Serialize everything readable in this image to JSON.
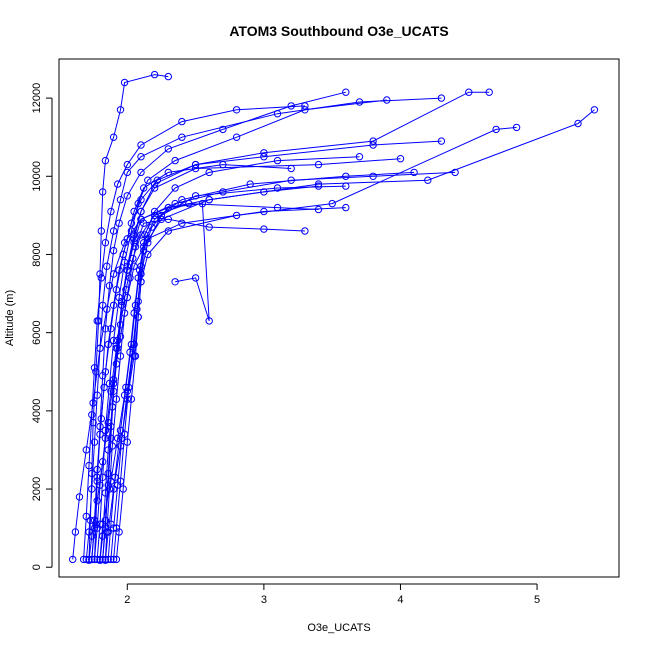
{
  "chart_data": {
    "type": "line",
    "title": "ATOM3 Southbound O3e_UCATS",
    "xlabel": "O3e_UCATS",
    "ylabel": "Altitude (m)",
    "xlim": [
      1.5,
      5.6
    ],
    "ylim": [
      -250,
      13000
    ],
    "xticks": [
      2,
      3,
      4,
      5
    ],
    "yticks": [
      0,
      2000,
      4000,
      6000,
      8000,
      10000,
      12000
    ],
    "grid": false,
    "color": "#0000ff",
    "markers": "open-circle",
    "series": [
      {
        "values": [
          [
            1.6,
            200
          ],
          [
            1.62,
            900
          ],
          [
            1.65,
            1800
          ],
          [
            1.7,
            3000
          ],
          [
            1.75,
            4200
          ],
          [
            1.8,
            5600
          ],
          [
            1.85,
            6600
          ],
          [
            1.9,
            7500
          ],
          [
            1.98,
            8300
          ],
          [
            2.1,
            8900
          ],
          [
            2.35,
            9300
          ],
          [
            2.7,
            9600
          ],
          [
            3.2,
            9900
          ],
          [
            3.8,
            10000
          ],
          [
            4.4,
            10100
          ]
        ]
      },
      {
        "values": [
          [
            1.72,
            180
          ],
          [
            1.74,
            800
          ],
          [
            1.78,
            1700
          ],
          [
            1.82,
            2700
          ],
          [
            1.86,
            3700
          ],
          [
            1.9,
            4800
          ],
          [
            1.95,
            5900
          ],
          [
            2.0,
            6900
          ],
          [
            2.05,
            7700
          ],
          [
            2.15,
            8400
          ],
          [
            2.4,
            8800
          ],
          [
            3.0,
            9100
          ],
          [
            3.6,
            9200
          ]
        ]
      },
      {
        "values": [
          [
            1.8,
            200
          ],
          [
            1.82,
            1100
          ],
          [
            1.88,
            2200
          ],
          [
            1.93,
            3300
          ],
          [
            1.98,
            4400
          ],
          [
            2.02,
            5500
          ],
          [
            2.05,
            6500
          ],
          [
            2.08,
            7400
          ],
          [
            2.12,
            8200
          ],
          [
            2.25,
            8900
          ],
          [
            2.6,
            9400
          ],
          [
            3.4,
            9800
          ],
          [
            4.2,
            9900
          ],
          [
            5.3,
            11350
          ],
          [
            5.42,
            11700
          ]
        ]
      },
      {
        "values": [
          [
            1.84,
            180
          ],
          [
            1.86,
            900
          ],
          [
            1.9,
            2000
          ],
          [
            1.95,
            3100
          ],
          [
            2.0,
            4300
          ],
          [
            2.05,
            5400
          ],
          [
            2.08,
            6400
          ],
          [
            2.1,
            7300
          ],
          [
            2.15,
            8000
          ],
          [
            2.3,
            8600
          ],
          [
            2.8,
            9000
          ],
          [
            3.5,
            9300
          ],
          [
            4.7,
            11200
          ],
          [
            4.85,
            11250
          ]
        ]
      },
      {
        "values": [
          [
            1.76,
            200
          ],
          [
            1.78,
            1000
          ],
          [
            1.8,
            2100
          ],
          [
            1.84,
            3300
          ],
          [
            1.88,
            4500
          ],
          [
            1.92,
            5600
          ],
          [
            1.96,
            6700
          ],
          [
            2.0,
            7600
          ],
          [
            2.05,
            8400
          ],
          [
            2.1,
            9100
          ],
          [
            2.2,
            9800
          ],
          [
            2.5,
            10300
          ],
          [
            3.0,
            10500
          ],
          [
            3.8,
            10800
          ],
          [
            4.3,
            10900
          ]
        ]
      },
      {
        "values": [
          [
            1.7,
            200
          ],
          [
            1.72,
            900
          ],
          [
            1.74,
            2000
          ],
          [
            1.76,
            3200
          ],
          [
            1.78,
            4400
          ],
          [
            1.8,
            5600
          ],
          [
            1.82,
            6700
          ],
          [
            1.85,
            7700
          ],
          [
            1.9,
            8600
          ],
          [
            1.95,
            9400
          ],
          [
            2.0,
            10100
          ],
          [
            2.1,
            10500
          ],
          [
            2.4,
            11000
          ],
          [
            3.1,
            11600
          ],
          [
            3.7,
            11900
          ],
          [
            4.3,
            12000
          ]
        ]
      },
      {
        "values": [
          [
            1.82,
            200
          ],
          [
            1.84,
            1200
          ],
          [
            1.86,
            2400
          ],
          [
            1.88,
            3600
          ],
          [
            1.9,
            4700
          ],
          [
            1.93,
            5800
          ],
          [
            1.96,
            6800
          ],
          [
            2.0,
            7700
          ],
          [
            2.05,
            8500
          ],
          [
            2.1,
            9100
          ],
          [
            2.2,
            9700
          ],
          [
            2.5,
            10200
          ],
          [
            3.4,
            10300
          ],
          [
            4.0,
            10450
          ]
        ]
      },
      {
        "values": [
          [
            1.78,
            200
          ],
          [
            1.8,
            1100
          ],
          [
            1.82,
            2300
          ],
          [
            1.84,
            3500
          ],
          [
            1.87,
            4700
          ],
          [
            1.9,
            5800
          ],
          [
            1.94,
            6900
          ],
          [
            1.98,
            7800
          ],
          [
            2.03,
            8600
          ],
          [
            2.08,
            9300
          ],
          [
            2.15,
            9900
          ],
          [
            2.35,
            10400
          ],
          [
            2.8,
            11000
          ],
          [
            3.3,
            11700
          ],
          [
            3.9,
            11950
          ]
        ]
      },
      {
        "values": [
          [
            1.88,
            200
          ],
          [
            1.9,
            1000
          ],
          [
            1.93,
            2100
          ],
          [
            1.96,
            3300
          ],
          [
            2.0,
            4500
          ],
          [
            2.04,
            5600
          ],
          [
            2.07,
            6600
          ],
          [
            2.1,
            7500
          ],
          [
            2.15,
            8300
          ],
          [
            2.25,
            9000
          ],
          [
            2.5,
            9500
          ],
          [
            3.1,
            9700
          ],
          [
            3.6,
            9750
          ]
        ]
      },
      {
        "values": [
          [
            1.74,
            200
          ],
          [
            1.76,
            1000
          ],
          [
            1.78,
            2200
          ],
          [
            1.8,
            3400
          ],
          [
            1.83,
            4600
          ],
          [
            1.86,
            5700
          ],
          [
            1.9,
            6700
          ],
          [
            1.94,
            7600
          ],
          [
            2.0,
            8400
          ],
          [
            2.05,
            9100
          ],
          [
            2.12,
            9700
          ],
          [
            2.3,
            10100
          ],
          [
            2.7,
            10300
          ],
          [
            3.2,
            10200
          ]
        ]
      },
      {
        "values": [
          [
            1.8,
            180
          ],
          [
            1.82,
            800
          ],
          [
            1.84,
            1900
          ],
          [
            1.86,
            3000
          ],
          [
            1.89,
            4100
          ],
          [
            1.92,
            5200
          ],
          [
            1.95,
            6200
          ],
          [
            1.99,
            7100
          ],
          [
            2.04,
            7900
          ],
          [
            2.1,
            8500
          ],
          [
            2.2,
            9000
          ],
          [
            2.45,
            9300
          ],
          [
            3.1,
            9200
          ],
          [
            3.4,
            9150
          ]
        ]
      },
      {
        "values": [
          [
            1.86,
            200
          ],
          [
            1.88,
            1100
          ],
          [
            1.91,
            2300
          ],
          [
            1.95,
            3500
          ],
          [
            1.99,
            4600
          ],
          [
            2.03,
            5700
          ],
          [
            2.06,
            6700
          ],
          [
            2.09,
            7600
          ],
          [
            2.12,
            8300
          ],
          [
            2.2,
            8900
          ],
          [
            2.4,
            9400
          ],
          [
            2.9,
            9800
          ],
          [
            3.6,
            10000
          ],
          [
            4.1,
            10100
          ]
        ]
      },
      {
        "values": [
          [
            1.72,
            200
          ],
          [
            1.73,
            1200
          ],
          [
            1.74,
            2400
          ],
          [
            1.75,
            3700
          ],
          [
            1.77,
            5000
          ],
          [
            1.79,
            6300
          ],
          [
            1.8,
            7500
          ],
          [
            1.81,
            8600
          ],
          [
            1.82,
            9600
          ],
          [
            1.84,
            10400
          ],
          [
            1.9,
            11000
          ],
          [
            1.95,
            11700
          ],
          [
            1.98,
            12400
          ],
          [
            2.2,
            12600
          ],
          [
            2.3,
            12550
          ]
        ]
      },
      {
        "values": [
          [
            1.76,
            200
          ],
          [
            1.77,
            1100
          ],
          [
            1.78,
            2300
          ],
          [
            1.8,
            3600
          ],
          [
            1.82,
            4900
          ],
          [
            1.84,
            6100
          ],
          [
            1.87,
            7200
          ],
          [
            1.9,
            8100
          ],
          [
            1.94,
            8800
          ],
          [
            2.0,
            9500
          ],
          [
            2.1,
            10100
          ],
          [
            2.3,
            10700
          ],
          [
            2.7,
            11200
          ],
          [
            3.2,
            11800
          ],
          [
            3.6,
            12150
          ]
        ]
      },
      {
        "values": [
          [
            1.9,
            200
          ],
          [
            1.92,
            1000
          ],
          [
            1.95,
            2200
          ],
          [
            1.98,
            3400
          ],
          [
            2.01,
            4600
          ],
          [
            2.05,
            5700
          ],
          [
            2.08,
            6800
          ],
          [
            2.1,
            7700
          ],
          [
            2.13,
            8500
          ],
          [
            2.2,
            9100
          ],
          [
            2.35,
            9700
          ],
          [
            2.6,
            10100
          ],
          [
            3.1,
            10400
          ],
          [
            3.7,
            10500
          ]
        ]
      },
      {
        "values": [
          [
            1.84,
            200
          ],
          [
            1.85,
            900
          ],
          [
            1.87,
            2000
          ],
          [
            1.89,
            3100
          ],
          [
            1.92,
            4300
          ],
          [
            1.95,
            5400
          ],
          [
            1.98,
            6500
          ],
          [
            2.02,
            7400
          ],
          [
            2.06,
            8200
          ],
          [
            2.12,
            8800
          ],
          [
            2.3,
            8900
          ],
          [
            2.6,
            8700
          ],
          [
            3.0,
            8650
          ],
          [
            3.3,
            8600
          ]
        ]
      },
      {
        "values": [
          [
            1.74,
            200
          ],
          [
            1.76,
            1200
          ],
          [
            1.78,
            2500
          ],
          [
            1.81,
            3800
          ],
          [
            1.84,
            5000
          ],
          [
            1.88,
            6100
          ],
          [
            1.92,
            7100
          ],
          [
            1.97,
            8000
          ],
          [
            2.03,
            8800
          ],
          [
            2.1,
            9400
          ],
          [
            2.22,
            9900
          ],
          [
            2.5,
            10300
          ],
          [
            3.0,
            10600
          ],
          [
            3.8,
            10900
          ],
          [
            4.5,
            12150
          ],
          [
            4.65,
            12150
          ]
        ]
      },
      {
        "values": [
          [
            1.82,
            200
          ],
          [
            1.84,
            1000
          ],
          [
            1.86,
            2100
          ],
          [
            1.88,
            3300
          ],
          [
            1.9,
            4500
          ],
          [
            1.93,
            5600
          ],
          [
            1.96,
            6700
          ],
          [
            2.0,
            7600
          ],
          [
            2.05,
            8300
          ],
          [
            2.1,
            8900
          ],
          [
            2.3,
            9200
          ],
          [
            2.55,
            9300
          ],
          [
            2.6,
            6300
          ],
          [
            2.5,
            7400
          ],
          [
            2.35,
            7300
          ]
        ]
      },
      {
        "values": [
          [
            1.68,
            200
          ],
          [
            1.7,
            1300
          ],
          [
            1.72,
            2600
          ],
          [
            1.74,
            3900
          ],
          [
            1.76,
            5100
          ],
          [
            1.78,
            6300
          ],
          [
            1.81,
            7400
          ],
          [
            1.84,
            8300
          ],
          [
            1.88,
            9100
          ],
          [
            1.93,
            9800
          ],
          [
            2.0,
            10300
          ],
          [
            2.1,
            10800
          ],
          [
            2.4,
            11400
          ],
          [
            2.8,
            11700
          ],
          [
            3.3,
            11800
          ]
        ]
      },
      {
        "values": [
          [
            1.92,
            200
          ],
          [
            1.94,
            900
          ],
          [
            1.97,
            2000
          ],
          [
            2.0,
            3200
          ],
          [
            2.03,
            4300
          ],
          [
            2.06,
            5400
          ],
          [
            2.08,
            6400
          ],
          [
            2.1,
            7300
          ],
          [
            2.12,
            8100
          ],
          [
            2.18,
            8700
          ],
          [
            2.3,
            9200
          ],
          [
            2.6,
            9400
          ],
          [
            3.0,
            9600
          ],
          [
            3.4,
            9750
          ]
        ]
      }
    ]
  }
}
